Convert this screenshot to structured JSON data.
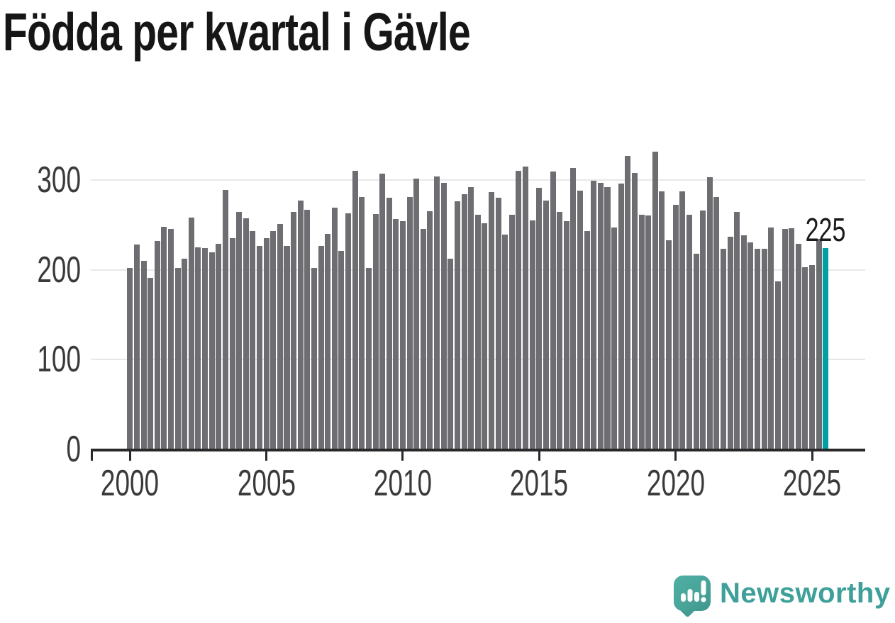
{
  "title": "Födda per kvartal i Gävle",
  "annotation": {
    "value_label": "225"
  },
  "logo": {
    "brand": "Newsworthy",
    "icon": "newsworthy-speech-bubble-bar-chart-icon"
  },
  "colors": {
    "bar": "#6d6d72",
    "highlight": "#00a0a3",
    "grid": "#e8e8e8",
    "axis": "#29292c",
    "tick_text": "#3a3a3a",
    "title_text": "#161616",
    "logo_teal": "#49a49a",
    "logo_text": "#3ea099",
    "background": "#ffffff"
  },
  "chart_data": {
    "type": "bar",
    "title": "Födda per kvartal i Gävle",
    "xlabel": "",
    "ylabel": "",
    "ylim": [
      0,
      343
    ],
    "y_ticks": [
      0,
      100,
      200,
      300
    ],
    "x_ticks": [
      "2000",
      "2005",
      "2010",
      "2015",
      "2020",
      "2025"
    ],
    "grid": "horizontal-light",
    "legend": "none",
    "highlight": {
      "index": 102,
      "category": "2025 Q3",
      "value": 225,
      "label": "225"
    },
    "categories": [
      "2000 Q1",
      "2000 Q2",
      "2000 Q3",
      "2000 Q4",
      "2001 Q1",
      "2001 Q2",
      "2001 Q3",
      "2001 Q4",
      "2002 Q1",
      "2002 Q2",
      "2002 Q3",
      "2002 Q4",
      "2003 Q1",
      "2003 Q2",
      "2003 Q3",
      "2003 Q4",
      "2004 Q1",
      "2004 Q2",
      "2004 Q3",
      "2004 Q4",
      "2005 Q1",
      "2005 Q2",
      "2005 Q3",
      "2005 Q4",
      "2006 Q1",
      "2006 Q2",
      "2006 Q3",
      "2006 Q4",
      "2007 Q1",
      "2007 Q2",
      "2007 Q3",
      "2007 Q4",
      "2008 Q1",
      "2008 Q2",
      "2008 Q3",
      "2008 Q4",
      "2009 Q1",
      "2009 Q2",
      "2009 Q3",
      "2009 Q4",
      "2010 Q1",
      "2010 Q2",
      "2010 Q3",
      "2010 Q4",
      "2011 Q1",
      "2011 Q2",
      "2011 Q3",
      "2011 Q4",
      "2012 Q1",
      "2012 Q2",
      "2012 Q3",
      "2012 Q4",
      "2013 Q1",
      "2013 Q2",
      "2013 Q3",
      "2013 Q4",
      "2014 Q1",
      "2014 Q2",
      "2014 Q3",
      "2014 Q4",
      "2015 Q1",
      "2015 Q2",
      "2015 Q3",
      "2015 Q4",
      "2016 Q1",
      "2016 Q2",
      "2016 Q3",
      "2016 Q4",
      "2017 Q1",
      "2017 Q2",
      "2017 Q3",
      "2017 Q4",
      "2018 Q1",
      "2018 Q2",
      "2018 Q3",
      "2018 Q4",
      "2019 Q1",
      "2019 Q2",
      "2019 Q3",
      "2019 Q4",
      "2020 Q1",
      "2020 Q2",
      "2020 Q3",
      "2020 Q4",
      "2021 Q1",
      "2021 Q2",
      "2021 Q3",
      "2021 Q4",
      "2022 Q1",
      "2022 Q2",
      "2022 Q3",
      "2022 Q4",
      "2023 Q1",
      "2023 Q2",
      "2023 Q3",
      "2023 Q4",
      "2024 Q1",
      "2024 Q2",
      "2024 Q3",
      "2024 Q4",
      "2025 Q1",
      "2025 Q2",
      "2025 Q3"
    ],
    "values": [
      203,
      229,
      211,
      192,
      233,
      249,
      246,
      203,
      213,
      259,
      226,
      225,
      220,
      230,
      290,
      236,
      265,
      258,
      244,
      227,
      236,
      244,
      252,
      227,
      265,
      278,
      268,
      203,
      227,
      241,
      270,
      222,
      264,
      311,
      282,
      203,
      263,
      308,
      281,
      257,
      255,
      282,
      302,
      246,
      266,
      305,
      298,
      213,
      277,
      285,
      293,
      262,
      253,
      287,
      281,
      240,
      262,
      311,
      316,
      256,
      292,
      278,
      310,
      265,
      255,
      314,
      289,
      244,
      300,
      298,
      293,
      248,
      297,
      328,
      309,
      262,
      261,
      332,
      288,
      234,
      273,
      288,
      262,
      219,
      267,
      304,
      282,
      224,
      238,
      265,
      239,
      231,
      224,
      224,
      248,
      188,
      246,
      247,
      230,
      204,
      206,
      235,
      225
    ]
  }
}
